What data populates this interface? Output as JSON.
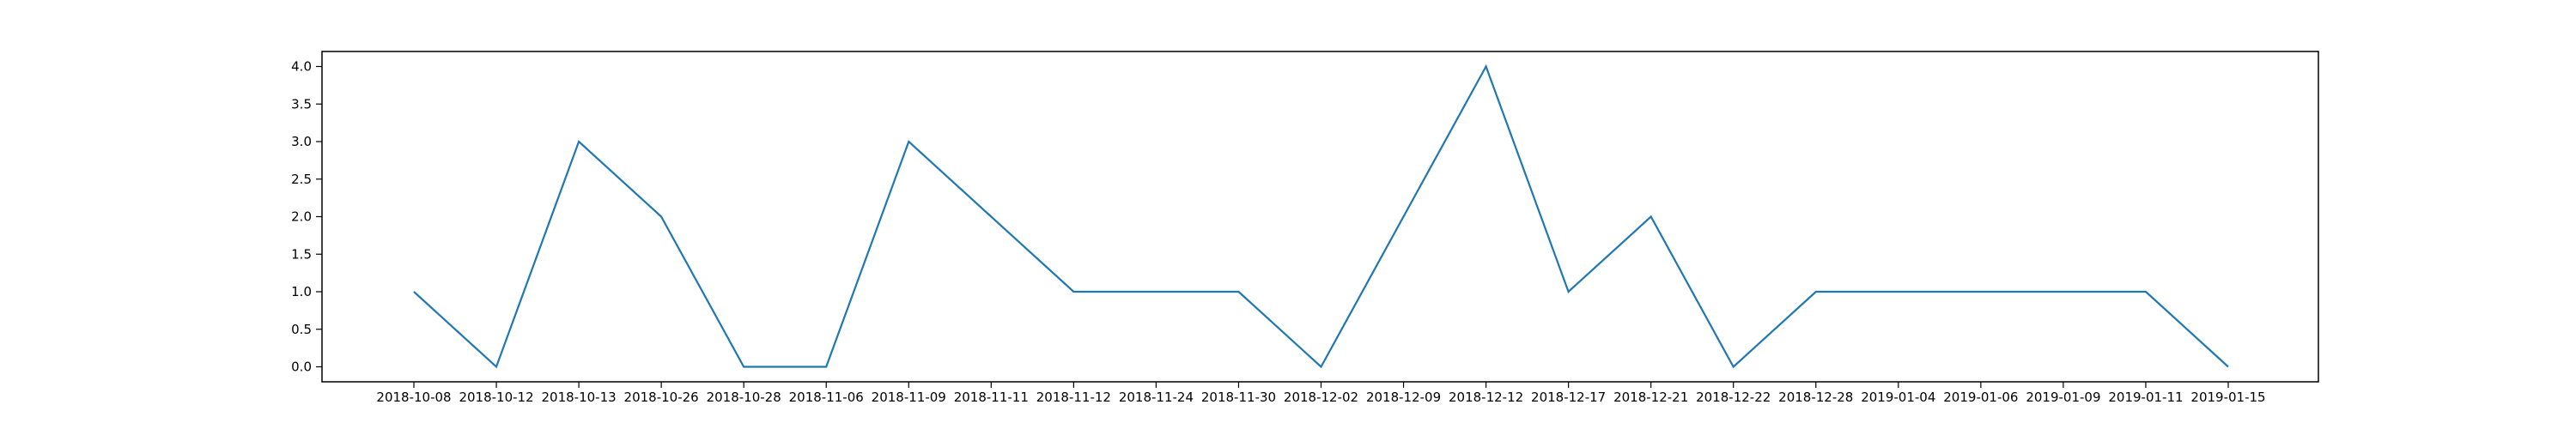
{
  "chart_data": {
    "type": "line",
    "title": "",
    "xlabel": "",
    "ylabel": "",
    "x": [
      "2018-10-08",
      "2018-10-12",
      "2018-10-13",
      "2018-10-26",
      "2018-10-28",
      "2018-11-06",
      "2018-11-09",
      "2018-11-11",
      "2018-11-12",
      "2018-11-24",
      "2018-11-30",
      "2018-12-02",
      "2018-12-09",
      "2018-12-12",
      "2018-12-17",
      "2018-12-21",
      "2018-12-22",
      "2018-12-28",
      "2019-01-04",
      "2019-01-06",
      "2019-01-09",
      "2019-01-11",
      "2019-01-15"
    ],
    "series": [
      {
        "values": [
          1,
          0,
          3,
          2,
          0,
          0,
          3,
          2,
          1,
          1,
          1,
          0,
          2,
          4,
          1,
          2,
          0,
          1,
          1,
          1,
          1,
          1,
          0
        ],
        "color": "#1f77b4"
      }
    ],
    "ylim": [
      -0.2,
      4.2
    ],
    "yticks": [
      "0.0",
      "0.5",
      "1.0",
      "1.5",
      "2.0",
      "2.5",
      "3.0",
      "3.5",
      "4.0"
    ],
    "grid": false,
    "legend": "none"
  }
}
